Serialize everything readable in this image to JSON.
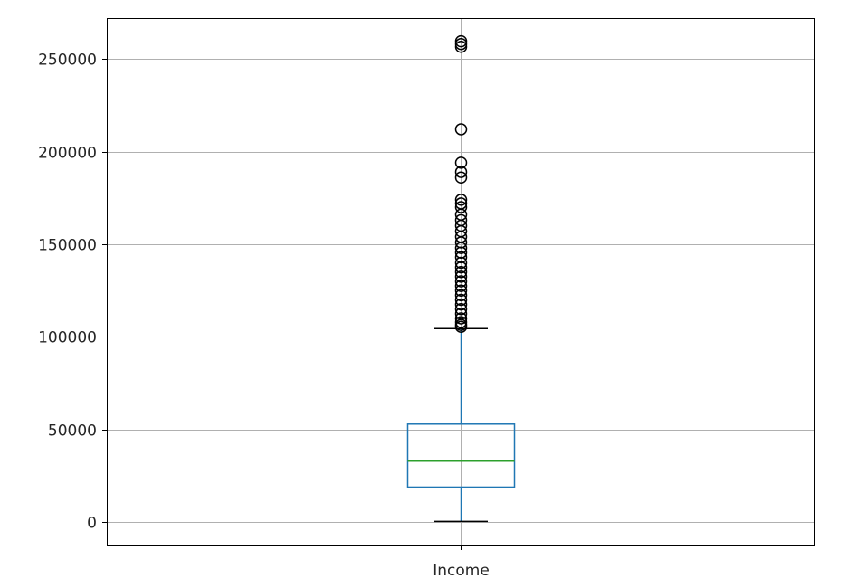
{
  "chart_data": {
    "type": "box",
    "title": "",
    "xlabel": "",
    "ylabel": "",
    "categories": [
      "Income"
    ],
    "ylim": [
      -12500,
      272000
    ],
    "yticks": [
      0,
      50000,
      100000,
      150000,
      200000,
      250000
    ],
    "ytick_labels": [
      "0",
      "50000",
      "100000",
      "150000",
      "200000",
      "250000"
    ],
    "grid": true,
    "colors": {
      "box": "#1f77b4",
      "median": "#2ca02c",
      "whisker": "#1f77b4",
      "cap": "#000000",
      "flier": "#000000",
      "grid": "#b0b0b0",
      "axes": "#000000"
    },
    "boxes": [
      {
        "name": "Income",
        "whisker_low": 500,
        "q1": 19000,
        "median": 33000,
        "q3": 53000,
        "whisker_high": 104500,
        "outliers": [
          259500,
          258000,
          256500,
          212000,
          194000,
          189000,
          186000,
          174000,
          172000,
          170000,
          166000,
          163000,
          160000,
          157000,
          154000,
          151000,
          148000,
          145500,
          143000,
          140000,
          137500,
          135000,
          132500,
          130000,
          127500,
          125000,
          122500,
          120000,
          117500,
          115000,
          112500,
          110000,
          108000,
          106500,
          105500
        ]
      }
    ]
  }
}
